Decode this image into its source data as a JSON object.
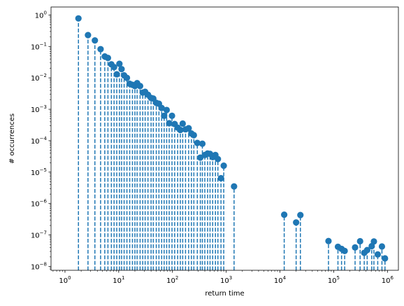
{
  "chart_data": {
    "type": "scatter",
    "style": "stem",
    "xlabel": "return time",
    "ylabel": "# occurrences",
    "xscale": "log",
    "yscale": "log",
    "xlim": [
      0.55,
      1600000
    ],
    "ylim": [
      7.5e-09,
      1.8
    ],
    "grid": false,
    "colors": {
      "series": "#1f77b4"
    },
    "x_ticks": [
      {
        "base": "10",
        "exp": "0",
        "value": 1
      },
      {
        "base": "10",
        "exp": "1",
        "value": 10
      },
      {
        "base": "10",
        "exp": "2",
        "value": 100
      },
      {
        "base": "10",
        "exp": "3",
        "value": 1000
      },
      {
        "base": "10",
        "exp": "4",
        "value": 10000
      },
      {
        "base": "10",
        "exp": "5",
        "value": 100000
      },
      {
        "base": "10",
        "exp": "6",
        "value": 1000000
      }
    ],
    "y_ticks": [
      {
        "base": "10",
        "exp": "−8",
        "value": 1e-08
      },
      {
        "base": "10",
        "exp": "−7",
        "value": 1e-07
      },
      {
        "base": "10",
        "exp": "−6",
        "value": 1e-06
      },
      {
        "base": "10",
        "exp": "−5",
        "value": 1e-05
      },
      {
        "base": "10",
        "exp": "−4",
        "value": 0.0001
      },
      {
        "base": "10",
        "exp": "−3",
        "value": 0.001
      },
      {
        "base": "10",
        "exp": "−2",
        "value": 0.01
      },
      {
        "base": "10",
        "exp": "−1",
        "value": 0.1
      },
      {
        "base": "10",
        "exp": "0",
        "value": 1
      }
    ],
    "series": [
      {
        "points": [
          [
            1.78,
            0.78
          ],
          [
            2.68,
            0.23
          ],
          [
            3.6,
            0.155
          ],
          [
            4.6,
            0.082
          ],
          [
            5.5,
            0.048
          ],
          [
            6.3,
            0.043
          ],
          [
            7.3,
            0.027
          ],
          [
            8.2,
            0.022
          ],
          [
            9.2,
            0.013
          ],
          [
            10.3,
            0.028
          ],
          [
            11.3,
            0.019
          ],
          [
            12.6,
            0.012
          ],
          [
            14.2,
            0.01
          ],
          [
            16,
            0.0065
          ],
          [
            18,
            0.006
          ],
          [
            20,
            0.0055
          ],
          [
            22,
            0.0068
          ],
          [
            25,
            0.0055
          ],
          [
            28,
            0.0034
          ],
          [
            31,
            0.0036
          ],
          [
            35,
            0.0029
          ],
          [
            40,
            0.0023
          ],
          [
            44,
            0.0022
          ],
          [
            50,
            0.0016
          ],
          [
            56,
            0.0015
          ],
          [
            63,
            0.0011
          ],
          [
            70,
            0.00062
          ],
          [
            78,
            0.00095
          ],
          [
            87,
            0.00036
          ],
          [
            98,
            0.00062
          ],
          [
            110,
            0.00034
          ],
          [
            125,
            0.00026
          ],
          [
            140,
            0.00022
          ],
          [
            155,
            0.00035
          ],
          [
            175,
            0.00023
          ],
          [
            200,
            0.00025
          ],
          [
            225,
            0.00017
          ],
          [
            250,
            0.00015
          ],
          [
            290,
            8.5e-05
          ],
          [
            330,
            2.9e-05
          ],
          [
            360,
            8e-05
          ],
          [
            400,
            3.5e-05
          ],
          [
            450,
            3.9e-05
          ],
          [
            500,
            3.8e-05
          ],
          [
            560,
            3e-05
          ],
          [
            630,
            3.5e-05
          ],
          [
            700,
            2.6e-05
          ],
          [
            800,
            6.4e-06
          ],
          [
            900,
            1.6e-05
          ],
          [
            1400,
            3.5e-06
          ],
          [
            12000,
            4.4e-07
          ],
          [
            20000,
            2.5e-07
          ],
          [
            24000,
            4.3e-07
          ],
          [
            80000,
            6.4e-08
          ],
          [
            120000,
            4.2e-08
          ],
          [
            140000,
            3.6e-08
          ],
          [
            160000,
            3.1e-08
          ],
          [
            250000,
            4e-08
          ],
          [
            310000,
            6.3e-08
          ],
          [
            370000,
            2.7e-08
          ],
          [
            420000,
            3.3e-08
          ],
          [
            510000,
            4.4e-08
          ],
          [
            560000,
            6.2e-08
          ],
          [
            660000,
            2.4e-08
          ],
          [
            790000,
            4.3e-08
          ],
          [
            900000,
            1.8e-08
          ]
        ]
      }
    ]
  }
}
